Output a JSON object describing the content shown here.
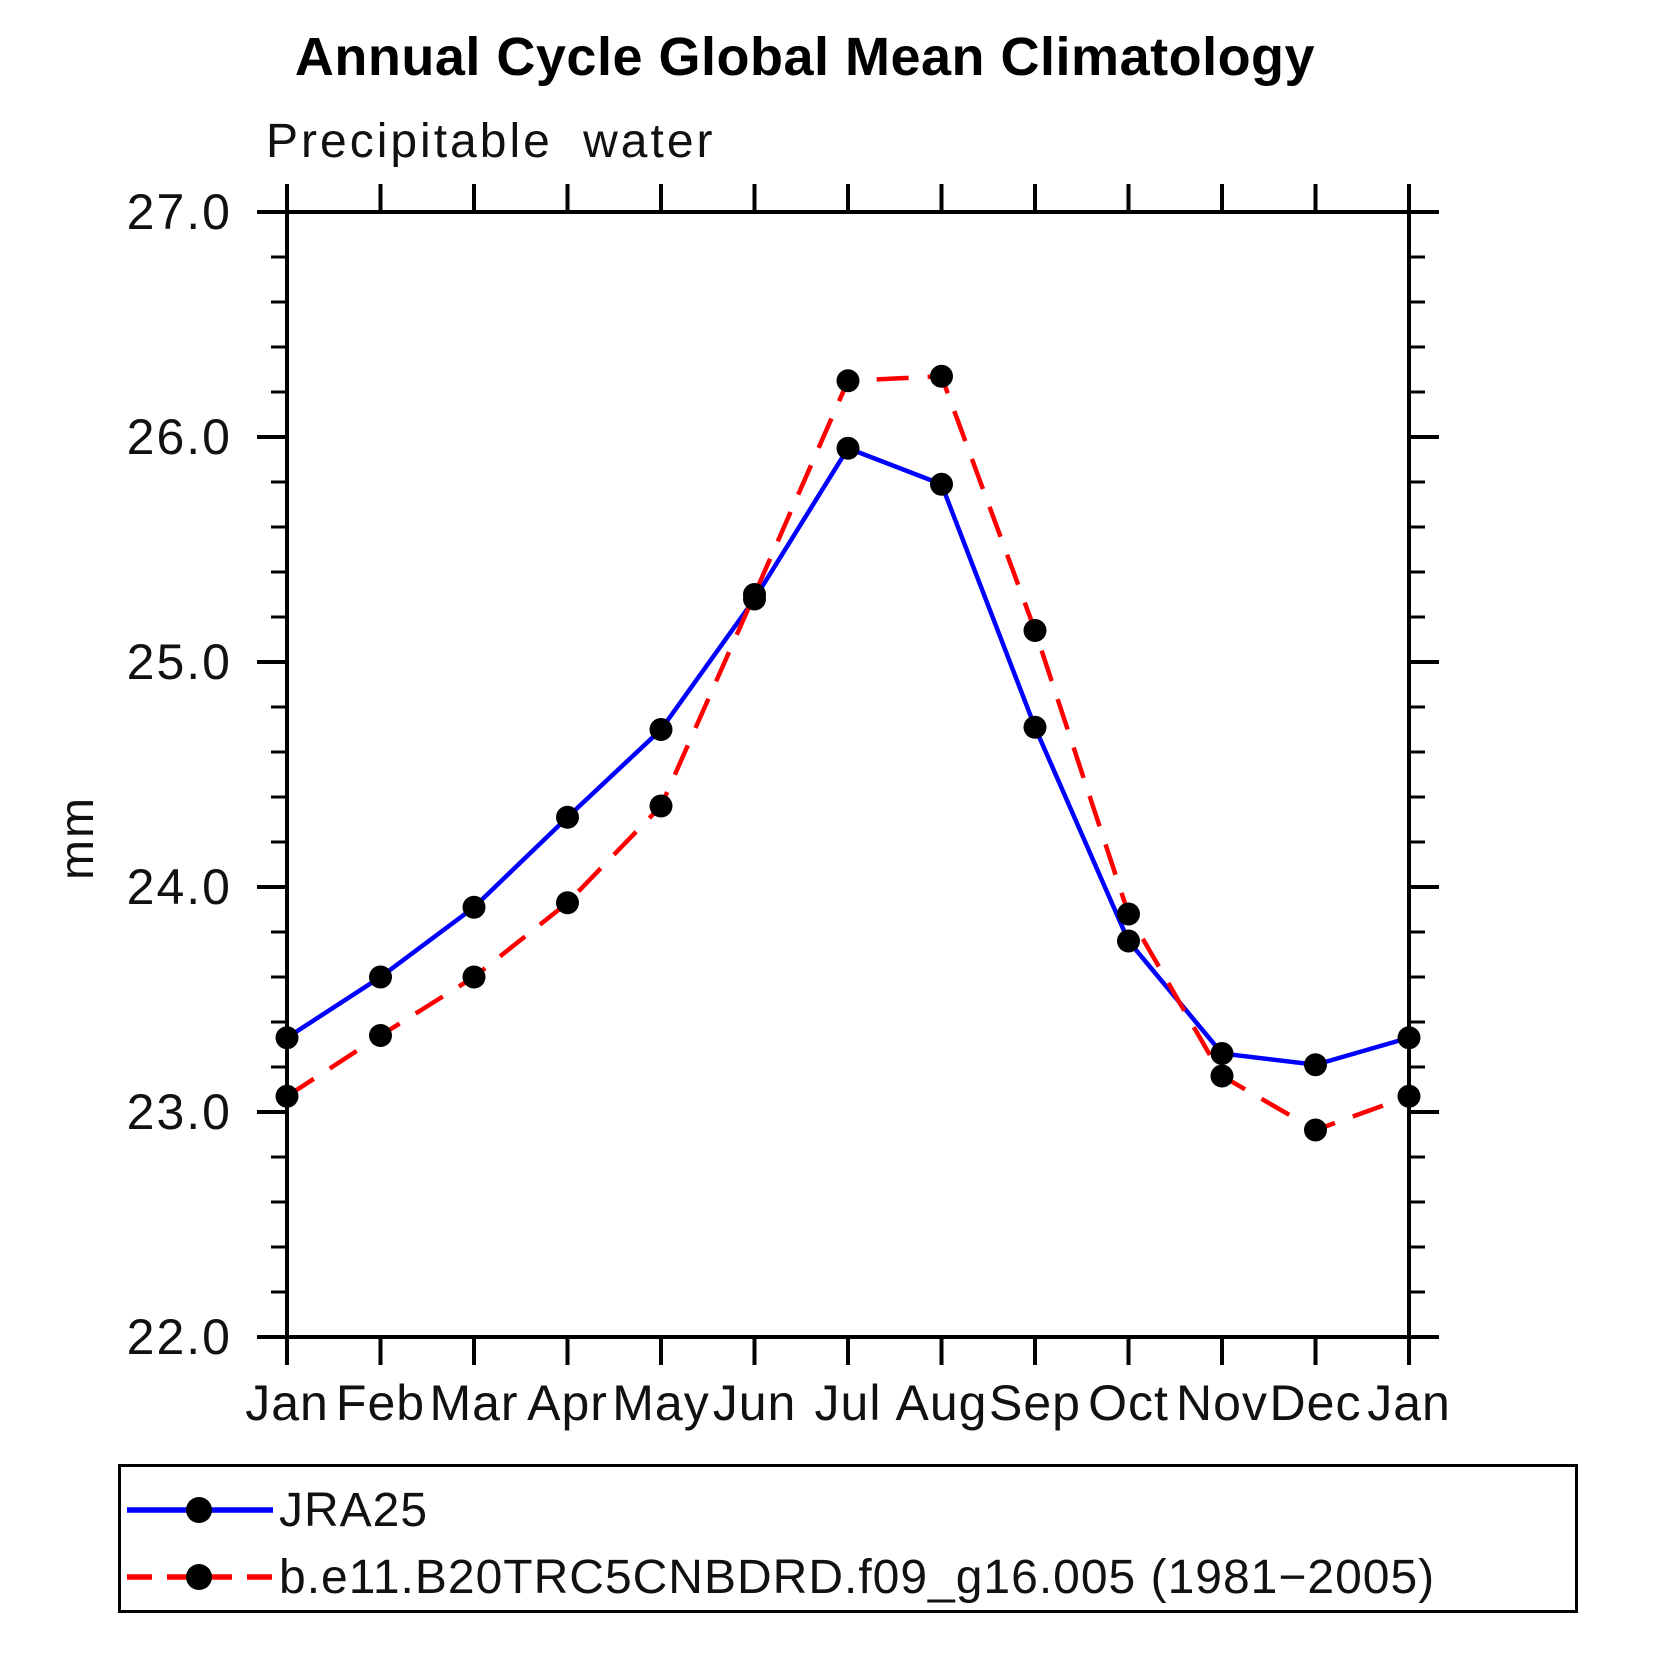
{
  "title": "Annual Cycle Global Mean Climatology",
  "subtitle": "Precipitable water",
  "ylabel": "mm",
  "colors": {
    "jra25_line": "#0000ff",
    "model_line": "#ff0000",
    "marker": "#000000",
    "axis": "#000000"
  },
  "legend": [
    {
      "label": "JRA25",
      "color": "#0000ff",
      "style": "solid"
    },
    {
      "label": "b.e11.B20TRC5CNBDRD.f09_g16.005 (1981−2005)",
      "color": "#ff0000",
      "style": "dashed"
    }
  ],
  "chart_data": {
    "type": "line",
    "title": "Annual Cycle Global Mean Climatology",
    "subtitle": "Precipitable water",
    "xlabel": "",
    "ylabel": "mm",
    "x_categories": [
      "Jan",
      "Feb",
      "Mar",
      "Apr",
      "May",
      "Jun",
      "Jul",
      "Aug",
      "Sep",
      "Oct",
      "Nov",
      "Dec",
      "Jan"
    ],
    "series": [
      {
        "name": "JRA25",
        "color": "#0000ff",
        "line_style": "solid",
        "marker": "filled-circle",
        "marker_color": "#000000",
        "values": [
          23.33,
          23.6,
          23.91,
          24.31,
          24.7,
          25.28,
          25.95,
          25.79,
          24.71,
          23.76,
          23.26,
          23.21,
          23.33
        ]
      },
      {
        "name": "b.e11.B20TRC5CNBDRD.f09_g16.005 (1981−2005)",
        "color": "#ff0000",
        "line_style": "dashed",
        "marker": "filled-circle",
        "marker_color": "#000000",
        "values": [
          23.07,
          23.34,
          23.6,
          23.93,
          24.36,
          25.3,
          26.25,
          26.27,
          25.14,
          23.88,
          23.16,
          22.92,
          23.07
        ]
      }
    ],
    "ylim": [
      22.0,
      27.0
    ],
    "yticks": [
      22.0,
      23.0,
      24.0,
      25.0,
      26.0,
      27.0
    ],
    "ytick_labels": [
      "22.0",
      "23.0",
      "24.0",
      "25.0",
      "26.0",
      "27.0"
    ],
    "minor_tick_step": 0.2,
    "grid": false,
    "legend_position": "bottom"
  }
}
